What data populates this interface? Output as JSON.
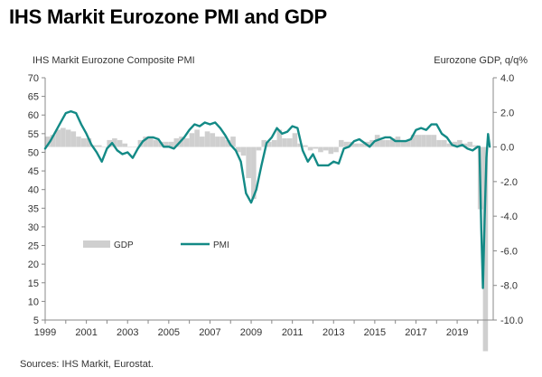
{
  "title": "IHS Markit Eurozone PMI and GDP",
  "source": "Sources: IHS Markit, Eurostat.",
  "chart_data": {
    "type": "bar+line",
    "left_axis_label": "IHS Markit Eurozone Composite PMI",
    "right_axis_label": "Eurozone GDP, q/q%",
    "left_ylim": [
      5,
      70
    ],
    "left_ticks": [
      "70",
      "65",
      "60",
      "55",
      "50",
      "45",
      "40",
      "35",
      "30",
      "25",
      "20",
      "15",
      "10",
      "5"
    ],
    "right_ylim": [
      -10.0,
      4.0
    ],
    "right_ticks": [
      "4.0",
      "2.0",
      "0.0",
      "-2.0",
      "-4.0",
      "-6.0",
      "-8.0",
      "-10.0"
    ],
    "x_range": [
      1999.0,
      2020.75
    ],
    "x_ticks": [
      "1999",
      "2001",
      "2003",
      "2005",
      "2007",
      "2009",
      "2011",
      "2013",
      "2015",
      "2017",
      "2019"
    ],
    "legend": {
      "gdp_label": "GDP",
      "pmi_label": "PMI",
      "placement": "lower-left"
    },
    "colors": {
      "gdp": "#cfcfcf",
      "pmi": "#138a86",
      "axis": "#888888",
      "text": "#333333"
    },
    "series": [
      {
        "name": "GDP",
        "type": "bar",
        "x": [
          1999.0,
          1999.25,
          1999.5,
          1999.75,
          2000.0,
          2000.25,
          2000.5,
          2000.75,
          2001.0,
          2001.25,
          2001.5,
          2001.75,
          2002.0,
          2002.25,
          2002.5,
          2002.75,
          2003.0,
          2003.25,
          2003.5,
          2003.75,
          2004.0,
          2004.25,
          2004.5,
          2004.75,
          2005.0,
          2005.25,
          2005.5,
          2005.75,
          2006.0,
          2006.25,
          2006.5,
          2006.75,
          2007.0,
          2007.25,
          2007.5,
          2007.75,
          2008.0,
          2008.25,
          2008.5,
          2008.75,
          2009.0,
          2009.25,
          2009.5,
          2009.75,
          2010.0,
          2010.25,
          2010.5,
          2010.75,
          2011.0,
          2011.25,
          2011.5,
          2011.75,
          2012.0,
          2012.25,
          2012.5,
          2012.75,
          2013.0,
          2013.25,
          2013.5,
          2013.75,
          2014.0,
          2014.25,
          2014.5,
          2014.75,
          2015.0,
          2015.25,
          2015.5,
          2015.75,
          2016.0,
          2016.25,
          2016.5,
          2016.75,
          2017.0,
          2017.25,
          2017.5,
          2017.75,
          2018.0,
          2018.25,
          2018.5,
          2018.75,
          2019.0,
          2019.25,
          2019.5,
          2019.75,
          2020.0,
          2020.25
        ],
        "values": [
          0.6,
          0.7,
          1.0,
          1.1,
          1.0,
          0.9,
          0.6,
          0.5,
          0.5,
          0.1,
          0.1,
          0.0,
          0.4,
          0.5,
          0.4,
          0.2,
          0.0,
          0.0,
          0.4,
          0.6,
          0.5,
          0.4,
          0.3,
          0.3,
          0.3,
          0.5,
          0.6,
          0.5,
          0.8,
          1.0,
          0.6,
          0.9,
          0.8,
          0.6,
          0.6,
          0.4,
          0.6,
          -0.3,
          -0.5,
          -1.8,
          -3.0,
          -0.2,
          0.4,
          0.3,
          0.4,
          1.0,
          0.5,
          0.5,
          0.8,
          0.2,
          0.1,
          -0.2,
          -0.1,
          -0.3,
          -0.2,
          -0.4,
          -0.3,
          0.4,
          0.3,
          0.3,
          0.2,
          0.2,
          0.3,
          0.4,
          0.7,
          0.4,
          0.4,
          0.5,
          0.6,
          0.3,
          0.4,
          0.7,
          0.7,
          0.7,
          0.7,
          0.7,
          0.4,
          0.4,
          0.2,
          0.3,
          0.4,
          0.2,
          0.3,
          0.1,
          -3.6,
          -11.8
        ]
      },
      {
        "name": "PMI",
        "type": "line",
        "x": [
          1999.0,
          1999.25,
          1999.5,
          1999.75,
          2000.0,
          2000.25,
          2000.5,
          2000.75,
          2001.0,
          2001.25,
          2001.5,
          2001.75,
          2002.0,
          2002.25,
          2002.5,
          2002.75,
          2003.0,
          2003.25,
          2003.5,
          2003.75,
          2004.0,
          2004.25,
          2004.5,
          2004.75,
          2005.0,
          2005.25,
          2005.5,
          2005.75,
          2006.0,
          2006.25,
          2006.5,
          2006.75,
          2007.0,
          2007.25,
          2007.5,
          2007.75,
          2008.0,
          2008.25,
          2008.5,
          2008.75,
          2009.0,
          2009.25,
          2009.5,
          2009.75,
          2010.0,
          2010.25,
          2010.5,
          2010.75,
          2011.0,
          2011.25,
          2011.5,
          2011.75,
          2012.0,
          2012.25,
          2012.5,
          2012.75,
          2013.0,
          2013.25,
          2013.5,
          2013.75,
          2014.0,
          2014.25,
          2014.5,
          2014.75,
          2015.0,
          2015.25,
          2015.5,
          2015.75,
          2016.0,
          2016.25,
          2016.5,
          2016.75,
          2017.0,
          2017.25,
          2017.5,
          2017.75,
          2018.0,
          2018.25,
          2018.5,
          2018.75,
          2019.0,
          2019.25,
          2019.5,
          2019.75,
          2020.0,
          2020.08,
          2020.17,
          2020.25,
          2020.33,
          2020.42,
          2020.5,
          2020.58
        ],
        "values": [
          51.0,
          53.0,
          55.5,
          58.0,
          60.5,
          61.0,
          60.5,
          57.5,
          55.0,
          52.0,
          50.0,
          47.5,
          51.0,
          52.5,
          50.5,
          49.5,
          50.0,
          48.5,
          51.0,
          53.0,
          54.0,
          54.0,
          53.5,
          51.5,
          51.5,
          51.0,
          52.5,
          54.0,
          56.0,
          57.5,
          57.0,
          58.0,
          57.5,
          58.0,
          56.5,
          54.5,
          52.0,
          50.5,
          47.5,
          39.0,
          36.5,
          40.0,
          46.5,
          52.5,
          54.0,
          56.5,
          55.0,
          55.5,
          57.0,
          56.5,
          50.5,
          47.5,
          49.5,
          46.5,
          46.5,
          46.5,
          47.5,
          47.0,
          51.0,
          51.5,
          53.0,
          53.5,
          52.5,
          51.5,
          53.0,
          53.5,
          54.0,
          54.0,
          53.0,
          53.0,
          53.0,
          53.5,
          56.0,
          56.5,
          56.0,
          57.5,
          57.5,
          55.0,
          54.0,
          52.0,
          51.5,
          52.0,
          51.0,
          50.5,
          51.5,
          51.5,
          29.5,
          13.6,
          31.5,
          48.5,
          54.9,
          51.5
        ]
      }
    ]
  }
}
